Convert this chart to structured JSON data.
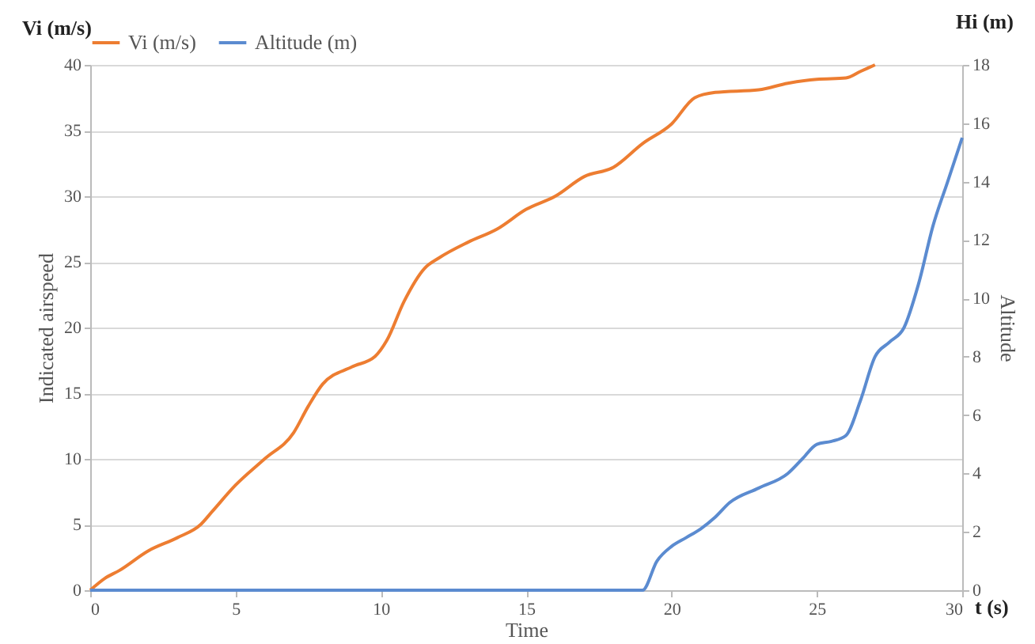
{
  "chart_data": {
    "type": "line",
    "xlabel": "Time",
    "ylabel": "Indicated airspeed",
    "y2label": "Altitude",
    "annotations": [
      "Vi (m/s)",
      "Hi (m)",
      "t (s)"
    ],
    "xlim": [
      0,
      30
    ],
    "xticks": [
      0,
      5,
      10,
      15,
      20,
      25,
      30
    ],
    "ylim": [
      0,
      40
    ],
    "yticks": [
      0,
      5,
      10,
      15,
      20,
      25,
      30,
      35,
      40
    ],
    "y2lim": [
      0,
      18
    ],
    "y2ticks": [
      0,
      2,
      4,
      6,
      8,
      10,
      12,
      14,
      16,
      18
    ],
    "grid": "y",
    "legend": "top",
    "series": [
      {
        "name": "Vi (m/s)",
        "color": "#ed7d31",
        "x": [
          0,
          0.5,
          1,
          2,
          3,
          3.8,
          4.2,
          5,
          6,
          7,
          7.5,
          8,
          9,
          9.8,
          10.2,
          10.8,
          11.5,
          12,
          13,
          14,
          15,
          16,
          17,
          18,
          19,
          20,
          20.8,
          21.5,
          23,
          24,
          25,
          26,
          26.5,
          27
        ],
        "values": [
          0,
          0.9,
          1.5,
          3,
          4,
          5,
          6,
          8,
          10,
          12,
          14,
          15.7,
          17,
          17.8,
          19,
          22,
          24.5,
          25.3,
          26.5,
          27.5,
          29,
          30,
          31.5,
          32.2,
          34,
          35.5,
          37.5,
          37.9,
          38.1,
          38.6,
          38.9,
          39,
          39.5,
          40
        ]
      },
      {
        "name": "Altitude (m)",
        "color": "#5b8bd0",
        "axis": "y2",
        "x": [
          0,
          19,
          19.5,
          20,
          20.5,
          21,
          21.5,
          22,
          23,
          24,
          24.5,
          25,
          25.5,
          26,
          26.5,
          27,
          27.5,
          28,
          28.5,
          29,
          29.5,
          30
        ],
        "values": [
          0,
          0,
          1,
          1.5,
          1.8,
          2.1,
          2.5,
          3,
          3.5,
          4,
          4.5,
          5,
          5.1,
          5.3,
          6.5,
          8,
          8.5,
          9,
          10.5,
          12.5,
          14,
          15.5
        ]
      }
    ]
  }
}
